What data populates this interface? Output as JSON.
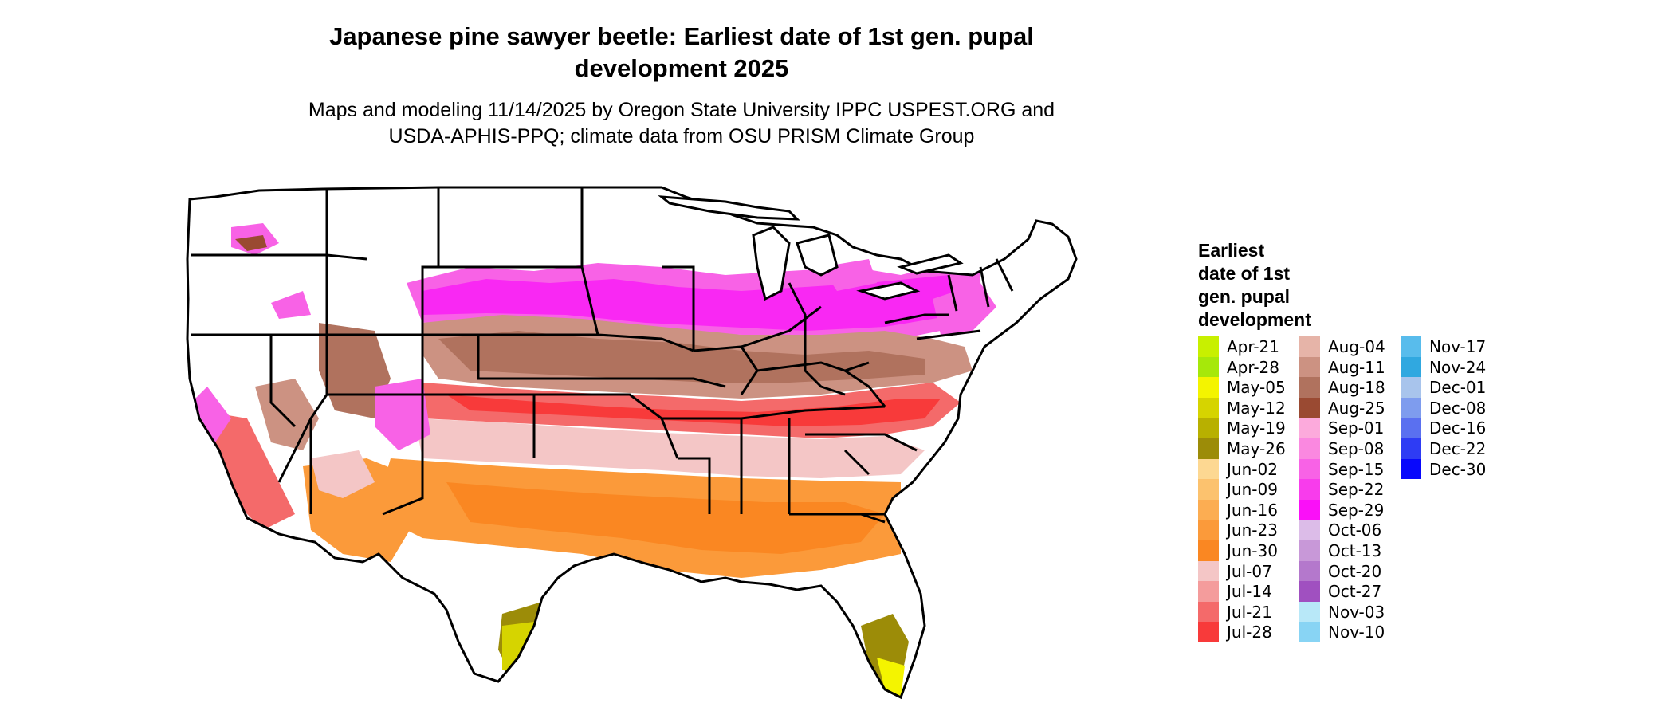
{
  "title_line1": "Japanese pine sawyer beetle: Earliest date of 1st gen. pupal",
  "title_line2": "development 2025",
  "subtitle_line1": "Maps and modeling 11/14/2025 by Oregon State University IPPC USPEST.ORG and",
  "subtitle_line2": "USDA-APHIS-PPQ; climate data from OSU PRISM Climate Group",
  "legend": {
    "title_lines": [
      "Earliest",
      "date of 1st",
      "gen. pupal",
      "development"
    ],
    "columns": [
      [
        {
          "label": "Apr-21",
          "color": "#c8f000"
        },
        {
          "label": "Apr-28",
          "color": "#a6e80a"
        },
        {
          "label": "May-05",
          "color": "#f4f400"
        },
        {
          "label": "May-12",
          "color": "#d6d400"
        },
        {
          "label": "May-19",
          "color": "#b8b000"
        },
        {
          "label": "May-26",
          "color": "#9c8c08"
        },
        {
          "label": "Jun-02",
          "color": "#fdd892"
        },
        {
          "label": "Jun-09",
          "color": "#fcc26e"
        },
        {
          "label": "Jun-16",
          "color": "#fcad52"
        },
        {
          "label": "Jun-23",
          "color": "#fb9a3a"
        },
        {
          "label": "Jun-30",
          "color": "#fa8722"
        },
        {
          "label": "Jul-07",
          "color": "#f4c6c6"
        },
        {
          "label": "Jul-14",
          "color": "#f49c9c"
        },
        {
          "label": "Jul-21",
          "color": "#f46a6a"
        },
        {
          "label": "Jul-28",
          "color": "#f83a3a"
        }
      ],
      [
        {
          "label": "Aug-04",
          "color": "#e6b4a8"
        },
        {
          "label": "Aug-11",
          "color": "#cc9282"
        },
        {
          "label": "Aug-18",
          "color": "#b0725e"
        },
        {
          "label": "Aug-25",
          "color": "#9a4a32"
        },
        {
          "label": "Sep-01",
          "color": "#fcaadc"
        },
        {
          "label": "Sep-08",
          "color": "#fa88e0"
        },
        {
          "label": "Sep-15",
          "color": "#f862e6"
        },
        {
          "label": "Sep-22",
          "color": "#f83cec"
        },
        {
          "label": "Sep-29",
          "color": "#fa10f8"
        },
        {
          "label": "Oct-06",
          "color": "#dcbce8"
        },
        {
          "label": "Oct-13",
          "color": "#c898d8"
        },
        {
          "label": "Oct-20",
          "color": "#b478cc"
        },
        {
          "label": "Oct-27",
          "color": "#a050c0"
        },
        {
          "label": "Nov-03",
          "color": "#b8e8f8"
        },
        {
          "label": "Nov-10",
          "color": "#88d4f4"
        }
      ],
      [
        {
          "label": "Nov-17",
          "color": "#58bcec"
        },
        {
          "label": "Nov-24",
          "color": "#30a8e0"
        },
        {
          "label": "Dec-01",
          "color": "#a8c4ec"
        },
        {
          "label": "Dec-08",
          "color": "#7e9cee"
        },
        {
          "label": "Dec-16",
          "color": "#5a70f0"
        },
        {
          "label": "Dec-22",
          "color": "#2e3cf4"
        },
        {
          "label": "Dec-30",
          "color": "#0808fc"
        }
      ]
    ]
  }
}
